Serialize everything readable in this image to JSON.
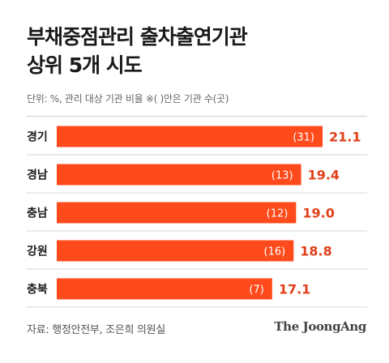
{
  "title": {
    "line1": "부채중점관리 출차출연기관",
    "line2": "상위 5개 시도"
  },
  "unit_note": "단위: %, 관리 대상 기관 비율  ※( )안은 기관 수(곳)",
  "source": "자료: 행정안전부, 조은희 의원실",
  "logo": "The JoongAng",
  "colors": {
    "bar": "#ff4a1c",
    "value_text": "#e0401a",
    "count_text": "#ffffff",
    "row_divider": "#d6d6d6"
  },
  "chart_data": {
    "type": "bar",
    "orientation": "horizontal",
    "categories": [
      "경기",
      "경남",
      "충남",
      "강원",
      "충북"
    ],
    "values": [
      21.1,
      19.4,
      19.0,
      18.8,
      17.1
    ],
    "value_labels": [
      "21.1",
      "19.4",
      "19.0",
      "18.8",
      "17.1"
    ],
    "counts": [
      "(31)",
      "(13)",
      "(12)",
      "(16)",
      "(7)"
    ],
    "xlim": [
      0,
      21.1
    ],
    "grid": false,
    "title": "부채중점관리 출차출연기관 상위 5개 시도"
  }
}
